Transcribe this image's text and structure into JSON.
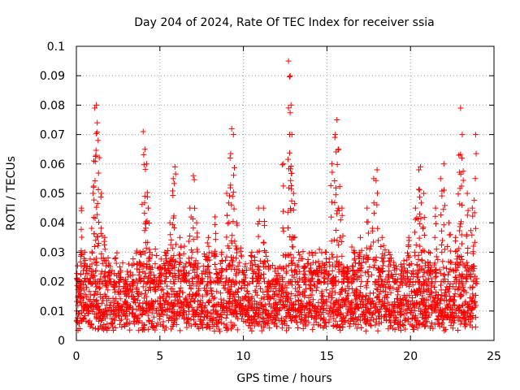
{
  "chart_data": {
    "type": "scatter",
    "title": "Day 204 of 2024, Rate Of TEC Index for receiver ssia",
    "xlabel": "GPS time / hours",
    "ylabel": "ROTI / TECUs",
    "xlim": [
      0,
      25
    ],
    "ylim": [
      0,
      0.1
    ],
    "x_ticks": [
      "0",
      "5",
      "10",
      "15",
      "20",
      "25"
    ],
    "y_ticks": [
      "0",
      "0.01",
      "0.02",
      "0.03",
      "0.04",
      "0.05",
      "0.06",
      "0.07",
      "0.08",
      "0.09",
      "0.1"
    ],
    "grid": true,
    "legend": "none",
    "marker": "plus",
    "marker_color": "#ff0000",
    "series": [
      {
        "x": [
          0.1,
          0.3,
          0.5,
          0.8,
          1.0,
          1.1,
          1.2,
          1.25,
          1.3,
          1.5,
          1.7,
          2.0,
          2.3,
          2.6,
          3.0,
          3.4,
          3.8,
          4.0,
          4.1,
          4.2,
          4.3,
          4.4,
          4.6,
          5.0,
          5.3,
          5.6,
          5.8,
          5.9,
          6.2,
          6.5,
          6.8,
          7.0,
          7.2,
          7.5,
          7.9,
          8.3,
          8.7,
          9.0,
          9.2,
          9.3,
          9.4,
          9.6,
          10.0,
          10.5,
          10.9,
          11.2,
          11.5,
          12.0,
          12.4,
          12.7,
          12.8,
          12.85,
          12.9,
          13.0,
          13.3,
          13.7,
          14.1,
          14.5,
          14.9,
          15.3,
          15.5,
          15.6,
          15.7,
          15.9,
          16.2,
          16.6,
          17.0,
          17.4,
          17.8,
          18.0,
          18.3,
          18.7,
          19.1,
          19.5,
          19.9,
          20.3,
          20.5,
          20.6,
          20.8,
          21.1,
          21.5,
          21.8,
          22.0,
          22.3,
          22.7,
          22.9,
          23.0,
          23.1,
          23.4,
          23.7,
          23.9
        ],
        "y": [
          0.015,
          0.045,
          0.03,
          0.02,
          0.05,
          0.079,
          0.08,
          0.074,
          0.068,
          0.05,
          0.035,
          0.02,
          0.018,
          0.025,
          0.015,
          0.02,
          0.03,
          0.071,
          0.065,
          0.06,
          0.045,
          0.03,
          0.02,
          0.025,
          0.03,
          0.04,
          0.055,
          0.059,
          0.035,
          0.025,
          0.045,
          0.056,
          0.04,
          0.02,
          0.035,
          0.042,
          0.03,
          0.05,
          0.062,
          0.072,
          0.07,
          0.04,
          0.02,
          0.03,
          0.045,
          0.045,
          0.015,
          0.02,
          0.06,
          0.095,
          0.09,
          0.08,
          0.07,
          0.05,
          0.03,
          0.025,
          0.03,
          0.02,
          0.03,
          0.06,
          0.07,
          0.075,
          0.065,
          0.045,
          0.025,
          0.03,
          0.035,
          0.045,
          0.055,
          0.058,
          0.035,
          0.03,
          0.02,
          0.025,
          0.035,
          0.045,
          0.058,
          0.059,
          0.05,
          0.03,
          0.045,
          0.055,
          0.06,
          0.04,
          0.035,
          0.063,
          0.079,
          0.07,
          0.05,
          0.045,
          0.07
        ],
        "baseline_range": [
          0.003,
          0.04
        ]
      }
    ]
  }
}
